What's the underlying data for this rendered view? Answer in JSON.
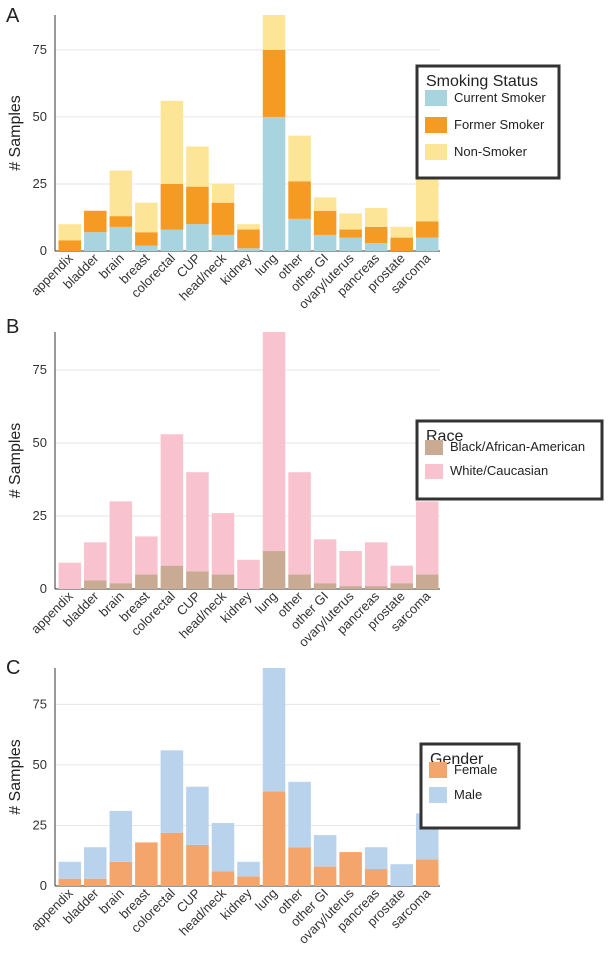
{
  "chart_data": [
    {
      "type": "bar",
      "stacked": true,
      "panel_label": "A",
      "categories": [
        "appendix",
        "bladder",
        "brain",
        "breast",
        "colorectal",
        "CUP",
        "head/neck",
        "kidney",
        "lung",
        "other",
        "other GI",
        "ovary/uterus",
        "pancreas",
        "prostate",
        "sarcoma"
      ],
      "series": [
        {
          "name": "Current Smoker",
          "color": "#a8d4e0",
          "values": [
            0,
            7,
            9,
            2,
            8,
            10,
            6,
            1,
            50,
            12,
            6,
            5,
            3,
            0,
            5
          ]
        },
        {
          "name": "Former Smoker",
          "color": "#f59a23",
          "values": [
            4,
            8,
            4,
            5,
            17,
            14,
            12,
            7,
            25,
            14,
            9,
            3,
            6,
            5,
            6
          ]
        },
        {
          "name": "Non-Smoker",
          "color": "#fde597",
          "values": [
            6,
            0,
            17,
            11,
            31,
            15,
            7,
            2,
            13,
            17,
            5,
            6,
            7,
            4,
            17
          ]
        }
      ],
      "xlabel": "",
      "ylabel": "# Samples",
      "yticks": [
        0,
        25,
        50,
        75
      ],
      "ylim": [
        0,
        88
      ],
      "legend_title": "Smoking Status",
      "legend_position": "right"
    },
    {
      "type": "bar",
      "stacked": true,
      "panel_label": "B",
      "categories": [
        "appendix",
        "bladder",
        "brain",
        "breast",
        "colorectal",
        "CUP",
        "head/neck",
        "kidney",
        "lung",
        "other",
        "other GI",
        "ovary/uterus",
        "pancreas",
        "prostate",
        "sarcoma"
      ],
      "series": [
        {
          "name": "Black/African-American",
          "color": "#c9ab93",
          "values": [
            0,
            3,
            2,
            5,
            8,
            6,
            5,
            0,
            13,
            5,
            2,
            1,
            1,
            2,
            5
          ]
        },
        {
          "name": "White/Caucasian",
          "color": "#f8c3cf",
          "values": [
            9,
            13,
            28,
            13,
            45,
            34,
            21,
            10,
            75,
            35,
            15,
            12,
            15,
            6,
            25
          ]
        }
      ],
      "xlabel": "",
      "ylabel": "# Samples",
      "yticks": [
        0,
        25,
        50,
        75
      ],
      "ylim": [
        0,
        88
      ],
      "legend_title": "Race",
      "legend_position": "right"
    },
    {
      "type": "bar",
      "stacked": true,
      "panel_label": "C",
      "categories": [
        "appendix",
        "bladder",
        "brain",
        "breast",
        "colorectal",
        "CUP",
        "head/neck",
        "kidney",
        "lung",
        "other",
        "other GI",
        "ovary/uterus",
        "pancreas",
        "prostate",
        "sarcoma"
      ],
      "series": [
        {
          "name": "Female",
          "color": "#f4a56b",
          "values": [
            3,
            3,
            10,
            18,
            22,
            17,
            6,
            4,
            39,
            16,
            8,
            14,
            7,
            0,
            11
          ]
        },
        {
          "name": "Male",
          "color": "#b9d3ed",
          "values": [
            7,
            13,
            21,
            0,
            34,
            24,
            20,
            6,
            51,
            27,
            13,
            0,
            9,
            9,
            19
          ]
        }
      ],
      "xlabel": "",
      "ylabel": "# Samples",
      "yticks": [
        0,
        25,
        50,
        75
      ],
      "ylim": [
        0,
        90
      ],
      "legend_title": "Gender",
      "legend_position": "right"
    }
  ]
}
